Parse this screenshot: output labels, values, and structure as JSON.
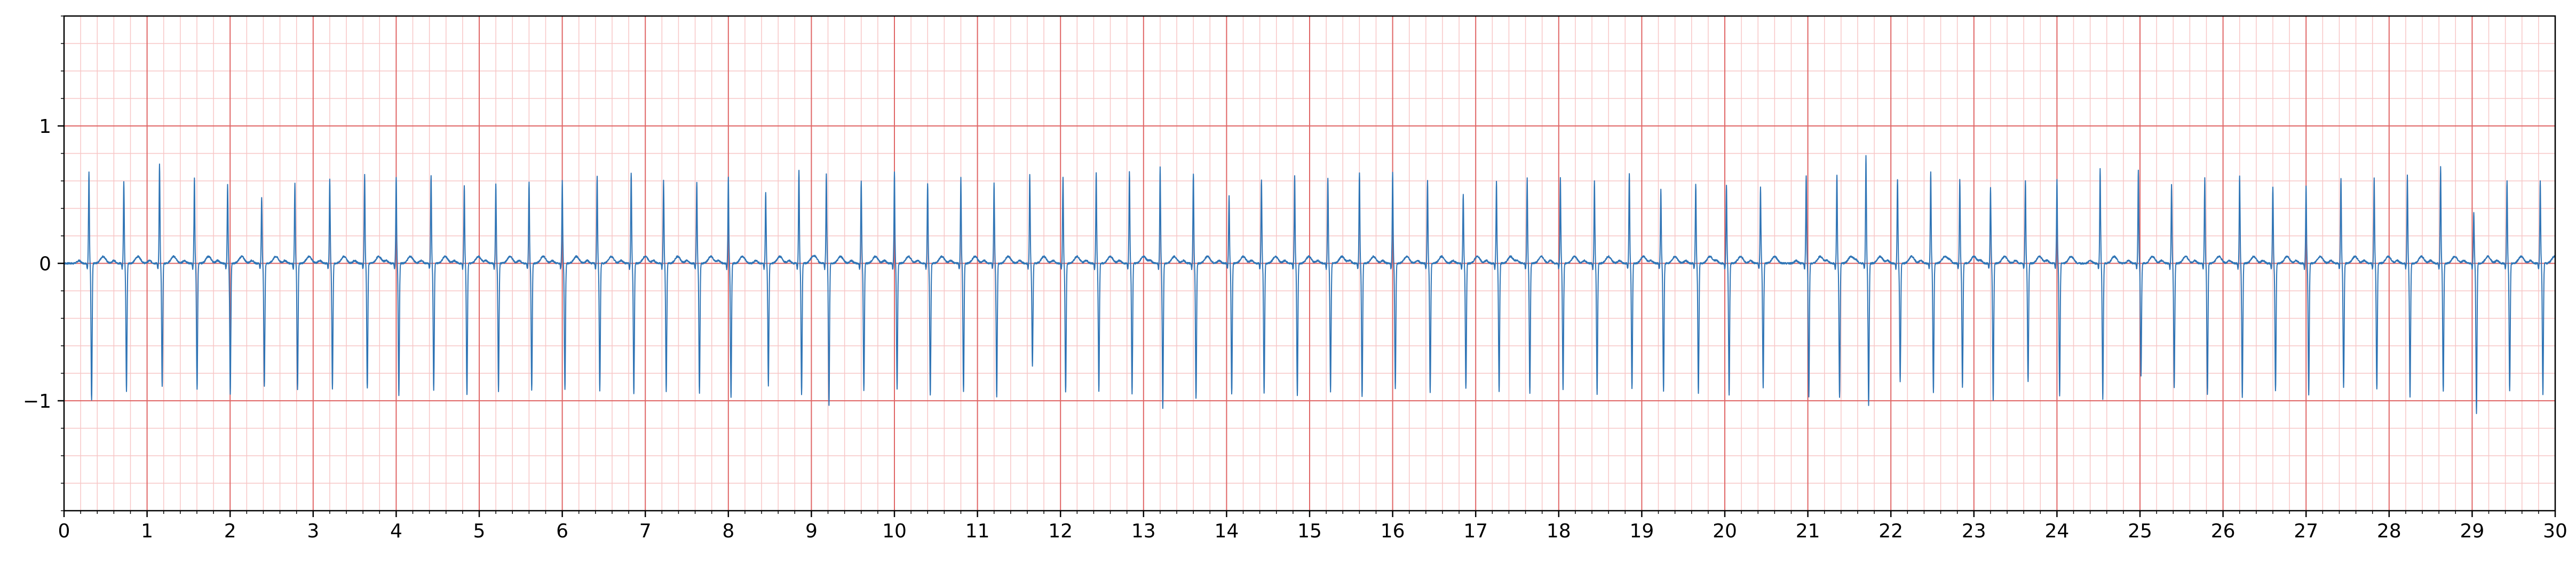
{
  "chart_data": {
    "type": "line",
    "title": "",
    "xlabel": "",
    "ylabel": "",
    "xlim": [
      0,
      30
    ],
    "ylim": [
      -1.8,
      1.8
    ],
    "x_major_ticks": [
      0,
      1,
      2,
      3,
      4,
      5,
      6,
      7,
      8,
      9,
      10,
      11,
      12,
      13,
      14,
      15,
      16,
      17,
      18,
      19,
      20,
      21,
      22,
      23,
      24,
      25,
      26,
      27,
      28,
      29,
      30
    ],
    "x_tick_labels": [
      "0",
      "1",
      "2",
      "3",
      "4",
      "5",
      "6",
      "7",
      "8",
      "9",
      "10",
      "11",
      "12",
      "13",
      "14",
      "15",
      "16",
      "17",
      "18",
      "19",
      "20",
      "21",
      "22",
      "23",
      "24",
      "25",
      "26",
      "27",
      "28",
      "29",
      "30"
    ],
    "y_major_ticks": [
      -1,
      0,
      1
    ],
    "y_tick_labels": [
      "−1",
      "0",
      "1"
    ],
    "x_minor_step": 0.2,
    "y_minor_step": 0.2,
    "grid": {
      "major": true,
      "minor": true,
      "major_color": "#e06666",
      "minor_color": "#f7c6c6"
    },
    "line_color": "#2f74b5",
    "series": [
      {
        "beats": [
          [
            0.3,
            0.67,
            -1.0
          ],
          [
            0.72,
            0.6,
            -0.93
          ],
          [
            1.15,
            0.72,
            -0.9
          ],
          [
            1.57,
            0.62,
            -0.92
          ],
          [
            1.97,
            0.57,
            -0.95
          ],
          [
            2.38,
            0.48,
            -0.9
          ],
          [
            2.78,
            0.58,
            -0.92
          ],
          [
            3.2,
            0.61,
            -0.92
          ],
          [
            3.62,
            0.65,
            -0.91
          ],
          [
            4.0,
            0.63,
            -0.96
          ],
          [
            4.42,
            0.64,
            -0.92
          ],
          [
            4.82,
            0.57,
            -0.96
          ],
          [
            5.2,
            0.58,
            -0.93
          ],
          [
            5.6,
            0.59,
            -0.92
          ],
          [
            6.0,
            0.6,
            -0.92
          ],
          [
            6.42,
            0.63,
            -0.93
          ],
          [
            6.83,
            0.66,
            -0.95
          ],
          [
            7.22,
            0.6,
            -0.93
          ],
          [
            7.62,
            0.59,
            -0.94
          ],
          [
            8.0,
            0.63,
            -0.98
          ],
          [
            8.45,
            0.52,
            -0.89
          ],
          [
            8.85,
            0.68,
            -0.95
          ],
          [
            9.18,
            0.65,
            -1.03
          ],
          [
            9.6,
            0.6,
            -0.92
          ],
          [
            10.0,
            0.67,
            -0.91
          ],
          [
            10.4,
            0.58,
            -0.96
          ],
          [
            10.8,
            0.62,
            -0.93
          ],
          [
            11.2,
            0.58,
            -0.97
          ],
          [
            11.63,
            0.65,
            -0.75
          ],
          [
            12.03,
            0.63,
            -0.94
          ],
          [
            12.43,
            0.66,
            -0.93
          ],
          [
            12.83,
            0.67,
            -0.95
          ],
          [
            13.2,
            0.7,
            -1.05
          ],
          [
            13.6,
            0.65,
            -0.98
          ],
          [
            14.03,
            0.49,
            -0.95
          ],
          [
            14.42,
            0.61,
            -0.94
          ],
          [
            14.82,
            0.64,
            -0.96
          ],
          [
            15.22,
            0.62,
            -0.93
          ],
          [
            15.6,
            0.66,
            -0.97
          ],
          [
            16.0,
            0.66,
            -0.91
          ],
          [
            16.42,
            0.6,
            -0.94
          ],
          [
            16.85,
            0.5,
            -0.91
          ],
          [
            17.25,
            0.6,
            -0.93
          ],
          [
            17.62,
            0.62,
            -0.94
          ],
          [
            18.02,
            0.62,
            -0.92
          ],
          [
            18.43,
            0.6,
            -0.95
          ],
          [
            18.85,
            0.65,
            -0.91
          ],
          [
            19.23,
            0.54,
            -0.93
          ],
          [
            19.65,
            0.57,
            -0.95
          ],
          [
            20.02,
            0.57,
            -0.96
          ],
          [
            20.43,
            0.55,
            -0.9
          ],
          [
            20.98,
            0.64,
            -0.97
          ],
          [
            21.35,
            0.64,
            -0.97
          ],
          [
            21.7,
            0.78,
            -1.03
          ],
          [
            22.08,
            0.61,
            -0.86
          ],
          [
            22.48,
            0.67,
            -0.94
          ],
          [
            22.83,
            0.61,
            -0.9
          ],
          [
            23.2,
            0.55,
            -1.0
          ],
          [
            23.62,
            0.6,
            -0.86
          ],
          [
            24.0,
            0.61,
            -0.97
          ],
          [
            24.52,
            0.69,
            -0.99
          ],
          [
            24.98,
            0.68,
            -0.82
          ],
          [
            25.38,
            0.57,
            -0.9
          ],
          [
            25.78,
            0.62,
            -0.95
          ],
          [
            26.2,
            0.64,
            -0.98
          ],
          [
            26.6,
            0.55,
            -0.93
          ],
          [
            27.0,
            0.56,
            -0.96
          ],
          [
            27.42,
            0.62,
            -0.9
          ],
          [
            27.82,
            0.62,
            -0.92
          ],
          [
            28.22,
            0.64,
            -0.97
          ],
          [
            28.62,
            0.7,
            -0.93
          ],
          [
            29.02,
            0.37,
            -1.09
          ],
          [
            29.42,
            0.6,
            -0.93
          ],
          [
            29.82,
            0.6,
            -0.95
          ]
        ]
      }
    ]
  }
}
